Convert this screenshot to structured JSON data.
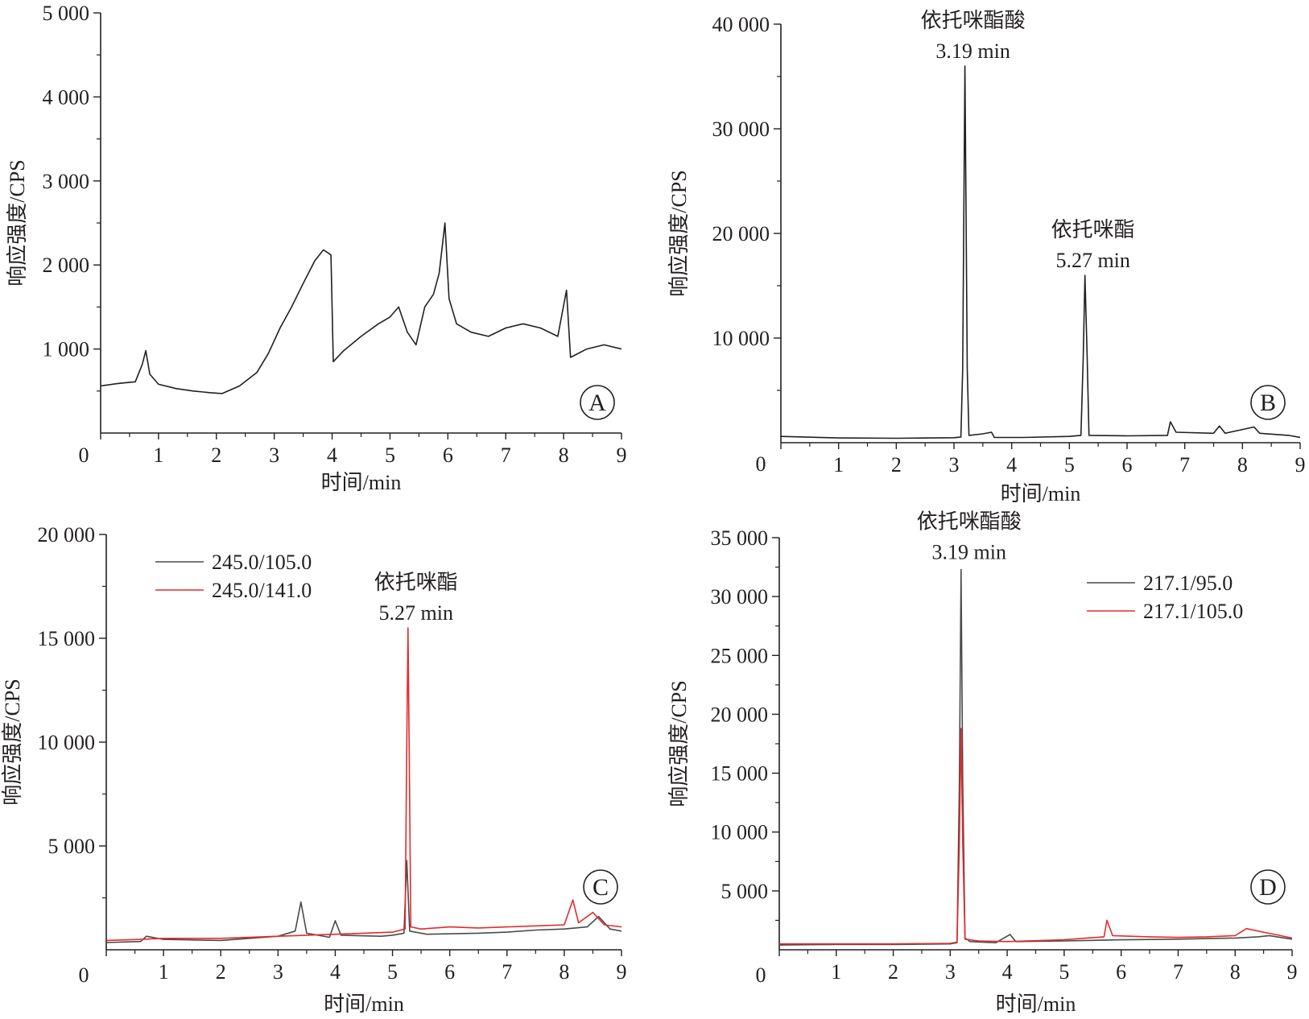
{
  "chart_data": [
    {
      "panel": "A",
      "type": "line",
      "xlabel": "时间/min",
      "ylabel": "响应强度/CPS",
      "xlim": [
        0,
        9
      ],
      "ylim": [
        0,
        5000
      ],
      "xticks": [
        "0",
        "1",
        "2",
        "3",
        "4",
        "5",
        "6",
        "7",
        "8",
        "9"
      ],
      "yticks": [
        "1 000",
        "2 000",
        "3 000",
        "4 000",
        "5 000"
      ],
      "legend": null,
      "annotations": [],
      "series": [
        {
          "color": "#231f20",
          "points": [
            [
              0,
              560
            ],
            [
              0.3,
              590
            ],
            [
              0.6,
              610
            ],
            [
              0.72,
              820
            ],
            [
              0.78,
              980
            ],
            [
              0.85,
              700
            ],
            [
              1.0,
              580
            ],
            [
              1.3,
              530
            ],
            [
              1.6,
              500
            ],
            [
              1.9,
              480
            ],
            [
              2.1,
              470
            ],
            [
              2.4,
              560
            ],
            [
              2.7,
              720
            ],
            [
              2.9,
              950
            ],
            [
              3.1,
              1250
            ],
            [
              3.3,
              1500
            ],
            [
              3.5,
              1780
            ],
            [
              3.7,
              2050
            ],
            [
              3.85,
              2180
            ],
            [
              3.98,
              2120
            ],
            [
              4.02,
              850
            ],
            [
              4.2,
              980
            ],
            [
              4.5,
              1150
            ],
            [
              4.8,
              1300
            ],
            [
              5.0,
              1380
            ],
            [
              5.15,
              1500
            ],
            [
              5.3,
              1200
            ],
            [
              5.45,
              1050
            ],
            [
              5.6,
              1500
            ],
            [
              5.75,
              1650
            ],
            [
              5.85,
              1900
            ],
            [
              5.95,
              2500
            ],
            [
              6.02,
              1600
            ],
            [
              6.15,
              1300
            ],
            [
              6.4,
              1200
            ],
            [
              6.7,
              1150
            ],
            [
              7.0,
              1250
            ],
            [
              7.3,
              1300
            ],
            [
              7.6,
              1250
            ],
            [
              7.9,
              1150
            ],
            [
              8.05,
              1700
            ],
            [
              8.12,
              900
            ],
            [
              8.4,
              1000
            ],
            [
              8.7,
              1050
            ],
            [
              9.0,
              1000
            ]
          ]
        }
      ]
    },
    {
      "panel": "B",
      "type": "line",
      "xlabel": "时间/min",
      "ylabel": "响应强度/CPS",
      "xlim": [
        0,
        9
      ],
      "ylim": [
        0,
        40000
      ],
      "xticks": [
        "0",
        "1",
        "2",
        "3",
        "4",
        "5",
        "6",
        "7",
        "8",
        "9"
      ],
      "yticks": [
        "10 000",
        "20 000",
        "30 000",
        "40 000"
      ],
      "legend": null,
      "annotations": [
        {
          "lines": [
            "依托咪酯酸",
            "3.19 min"
          ],
          "x": 3.19,
          "y": 36000
        },
        {
          "lines": [
            "依托咪酯",
            "5.27 min"
          ],
          "x": 5.27,
          "y": 16000
        }
      ],
      "series": [
        {
          "color": "#231f20",
          "points": [
            [
              0,
              600
            ],
            [
              1.0,
              450
            ],
            [
              2.0,
              420
            ],
            [
              3.0,
              480
            ],
            [
              3.12,
              550
            ],
            [
              3.15,
              7000
            ],
            [
              3.19,
              36000
            ],
            [
              3.23,
              7000
            ],
            [
              3.26,
              700
            ],
            [
              3.5,
              850
            ],
            [
              3.65,
              1000
            ],
            [
              3.7,
              500
            ],
            [
              4.2,
              500
            ],
            [
              5.0,
              600
            ],
            [
              5.2,
              700
            ],
            [
              5.24,
              8000
            ],
            [
              5.27,
              16000
            ],
            [
              5.31,
              8000
            ],
            [
              5.34,
              700
            ],
            [
              6.0,
              650
            ],
            [
              6.7,
              700
            ],
            [
              6.75,
              2000
            ],
            [
              6.85,
              1000
            ],
            [
              7.5,
              900
            ],
            [
              7.6,
              1600
            ],
            [
              7.7,
              900
            ],
            [
              8.2,
              1500
            ],
            [
              8.3,
              900
            ],
            [
              8.8,
              700
            ],
            [
              9.0,
              500
            ]
          ]
        }
      ]
    },
    {
      "panel": "C",
      "type": "line",
      "xlabel": "时间/min",
      "ylabel": "响应强度/CPS",
      "xlim": [
        0,
        9
      ],
      "ylim": [
        0,
        20000
      ],
      "xticks": [
        "0",
        "1",
        "2",
        "3",
        "4",
        "5",
        "6",
        "7",
        "8",
        "9"
      ],
      "yticks": [
        "5 000",
        "10 000",
        "15 000",
        "20 000"
      ],
      "legend": [
        {
          "name": "245.0/105.0",
          "color": "#4a4a4a"
        },
        {
          "name": "245.0/141.0",
          "color": "#e32c2c"
        }
      ],
      "annotations": [
        {
          "lines": [
            "依托咪酯",
            "5.27 min"
          ],
          "x": 5.27,
          "y": 15500
        }
      ],
      "series": [
        {
          "name": "245.0/105.0",
          "color": "#4a4a4a",
          "points": [
            [
              0,
              350
            ],
            [
              0.6,
              400
            ],
            [
              0.7,
              650
            ],
            [
              1.0,
              500
            ],
            [
              2.0,
              450
            ],
            [
              3.0,
              650
            ],
            [
              3.3,
              900
            ],
            [
              3.4,
              2300
            ],
            [
              3.5,
              800
            ],
            [
              3.9,
              600
            ],
            [
              4.0,
              1400
            ],
            [
              4.1,
              700
            ],
            [
              4.8,
              650
            ],
            [
              5.0,
              700
            ],
            [
              5.2,
              800
            ],
            [
              5.25,
              4300
            ],
            [
              5.3,
              900
            ],
            [
              5.6,
              750
            ],
            [
              6.5,
              800
            ],
            [
              7.0,
              850
            ],
            [
              7.5,
              950
            ],
            [
              8.0,
              1000
            ],
            [
              8.4,
              1100
            ],
            [
              8.6,
              1600
            ],
            [
              8.8,
              1000
            ],
            [
              9.0,
              900
            ]
          ]
        },
        {
          "name": "245.0/141.0",
          "color": "#e32c2c",
          "points": [
            [
              0,
              450
            ],
            [
              0.6,
              500
            ],
            [
              1.0,
              550
            ],
            [
              2.0,
              550
            ],
            [
              3.0,
              650
            ],
            [
              3.5,
              700
            ],
            [
              4.0,
              750
            ],
            [
              4.5,
              800
            ],
            [
              5.0,
              850
            ],
            [
              5.22,
              1000
            ],
            [
              5.25,
              10000
            ],
            [
              5.27,
              15500
            ],
            [
              5.29,
              10000
            ],
            [
              5.32,
              1100
            ],
            [
              5.5,
              1000
            ],
            [
              6.0,
              1100
            ],
            [
              6.5,
              1050
            ],
            [
              7.0,
              1100
            ],
            [
              7.5,
              1150
            ],
            [
              8.0,
              1200
            ],
            [
              8.15,
              2400
            ],
            [
              8.25,
              1300
            ],
            [
              8.5,
              1800
            ],
            [
              8.7,
              1200
            ],
            [
              9.0,
              1100
            ]
          ]
        }
      ]
    },
    {
      "panel": "D",
      "type": "line",
      "xlabel": "时间/min",
      "ylabel": "响应强度/CPS",
      "xlim": [
        0,
        9
      ],
      "ylim": [
        0,
        35000
      ],
      "xticks": [
        "0",
        "1",
        "2",
        "3",
        "4",
        "5",
        "6",
        "7",
        "8",
        "9"
      ],
      "yticks": [
        "5 000",
        "10 000",
        "15 000",
        "20 000",
        "25 000",
        "30 000",
        "35 000"
      ],
      "legend": [
        {
          "name": "217.1/95.0",
          "color": "#4a4a4a"
        },
        {
          "name": "217.1/105.0",
          "color": "#e32c2c"
        }
      ],
      "annotations": [
        {
          "lines": [
            "依托咪酯酸",
            "3.19 min"
          ],
          "x": 3.19,
          "y": 32500
        }
      ],
      "series": [
        {
          "name": "217.1/95.0",
          "color": "#4a4a4a",
          "points": [
            [
              0,
              400
            ],
            [
              1.0,
              450
            ],
            [
              2.0,
              450
            ],
            [
              3.0,
              500
            ],
            [
              3.12,
              600
            ],
            [
              3.16,
              14000
            ],
            [
              3.19,
              32300
            ],
            [
              3.22,
              14000
            ],
            [
              3.26,
              1000
            ],
            [
              3.35,
              700
            ],
            [
              3.8,
              600
            ],
            [
              4.05,
              1300
            ],
            [
              4.15,
              700
            ],
            [
              5.0,
              750
            ],
            [
              5.5,
              800
            ],
            [
              6.0,
              850
            ],
            [
              7.0,
              900
            ],
            [
              7.5,
              950
            ],
            [
              8.0,
              1000
            ],
            [
              8.4,
              1100
            ],
            [
              8.6,
              1200
            ],
            [
              9.0,
              900
            ]
          ]
        },
        {
          "name": "217.1/105.0",
          "color": "#e32c2c",
          "points": [
            [
              0,
              500
            ],
            [
              1.0,
              500
            ],
            [
              2.0,
              500
            ],
            [
              3.0,
              550
            ],
            [
              3.12,
              650
            ],
            [
              3.16,
              9000
            ],
            [
              3.19,
              18800
            ],
            [
              3.22,
              9000
            ],
            [
              3.26,
              900
            ],
            [
              3.5,
              750
            ],
            [
              4.0,
              700
            ],
            [
              5.0,
              850
            ],
            [
              5.4,
              1000
            ],
            [
              5.7,
              1100
            ],
            [
              5.75,
              2500
            ],
            [
              5.85,
              1200
            ],
            [
              6.5,
              1100
            ],
            [
              7.0,
              1050
            ],
            [
              7.5,
              1100
            ],
            [
              8.0,
              1200
            ],
            [
              8.2,
              1800
            ],
            [
              8.5,
              1500
            ],
            [
              8.8,
              1200
            ],
            [
              9.0,
              1000
            ]
          ]
        }
      ]
    }
  ],
  "panel_letters": [
    "A",
    "B",
    "C",
    "D"
  ],
  "axis_zero_labels": [
    "0",
    "0",
    "0",
    "0"
  ]
}
